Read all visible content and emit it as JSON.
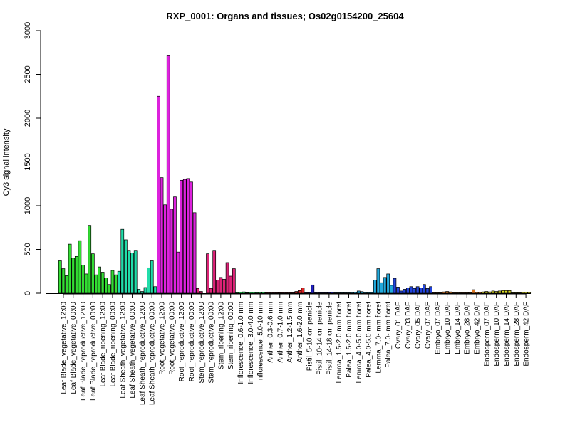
{
  "chart_data": {
    "type": "bar",
    "title": "RXP_0001: Organs and tissues; Os02g0154200_25604",
    "xlabel": "",
    "ylabel": "Cy3 signal intensity",
    "ylim": [
      0,
      3000
    ],
    "yticks": [
      0,
      500,
      1000,
      1500,
      2000,
      2500,
      3000
    ],
    "grid": false,
    "categories": [
      "Leaf Blade_vegetative_12:00",
      "Leaf Blade_vegetative_00:00",
      "Leaf Blade_reproductive_12:00",
      "Leaf Blade_reproductive_00:00",
      "Leaf Blade_ripening_12:00",
      "Leaf Blade_ripening_00:00",
      "Leaf Sheath_vegetative_12:00",
      "Leaf Sheath_vegetative_00:00",
      "Leaf Sheath_reproductive_12:00",
      "Leaf Sheath_reproductive_00:00",
      "Root_vegetative_12:00",
      "Root_vegetative_00:00",
      "Root_reproductive_12:00",
      "Root_reproductive_00:00",
      "Stem_reproductive_12:00",
      "Stem_reproductive_00:00",
      "Stem_ripening_12:00",
      "Stem_ripening_00:00",
      "Inflorescence_0.6-1.0 mm",
      "Inflorescence_3.0-4.0 mm",
      "Inflorescence_5.0-10 mm",
      "Anther_0.3-0.6 mm",
      "Anther_0.7-1.0 mm",
      "Anther_1.2-1.5 mm",
      "Anther_1.6-2.0 mm",
      "Pistil_5-10 cm panicle",
      "Pistil_10-14 cm panicle",
      "Pistil_14-18 cm panicle",
      "Lemma_1.5-2.0 mm floret",
      "Palea_1.5-2.0 mm floret",
      "Lemma_4.0-5.0 mm floret",
      "Palea_4.0-5.0 mm floret",
      "Lemma_7.0- mm floret",
      "Palea_7.0- mm floret",
      "Ovary_01 DAF",
      "Ovary_03 DAF",
      "Ovary_05 DAF",
      "Ovary_07 DAF",
      "Embryo_07 DAF",
      "Embryo_10 DAF",
      "Embryo_14 DAF",
      "Embryo_28 DAF",
      "Embryo_42 DAF",
      "Endosperm_07 DAF",
      "Endosperm_10 DAF",
      "Endosperm_14 DAF",
      "Endosperm_28 DAF",
      "Endosperm_42 DAF"
    ],
    "groups": [
      {
        "color": "#33dd33",
        "values": [
          370,
          280,
          200
        ]
      },
      {
        "color": "#33dd33",
        "values": [
          560,
          400,
          420
        ]
      },
      {
        "color": "#33dd33",
        "values": [
          600,
          320,
          220
        ]
      },
      {
        "color": "#33dd33",
        "values": [
          775,
          450,
          210
        ]
      },
      {
        "color": "#33dd33",
        "values": [
          300,
          240,
          175
        ]
      },
      {
        "color": "#33dd33",
        "values": [
          100,
          260,
          210
        ]
      },
      {
        "color": "#22ddaa",
        "values": [
          250,
          730,
          610
        ]
      },
      {
        "color": "#22ddaa",
        "values": [
          490,
          460,
          490
        ]
      },
      {
        "color": "#22ddaa",
        "values": [
          45,
          20,
          65
        ]
      },
      {
        "color": "#22ddaa",
        "values": [
          290,
          370,
          75
        ]
      },
      {
        "color": "#dd22dd",
        "values": [
          2250,
          1320,
          1010
        ]
      },
      {
        "color": "#dd22dd",
        "values": [
          2720,
          960,
          1100
        ]
      },
      {
        "color": "#dd22dd",
        "values": [
          470,
          1290,
          1300
        ]
      },
      {
        "color": "#dd22dd",
        "values": [
          1310,
          1270,
          920
        ]
      },
      {
        "color": "#dd2277",
        "values": [
          55,
          20
        ]
      },
      {
        "color": "#dd2277",
        "values": [
          450,
          55,
          490
        ]
      },
      {
        "color": "#dd2277",
        "values": [
          150,
          180,
          160
        ]
      },
      {
        "color": "#dd2277",
        "values": [
          350,
          195,
          280
        ]
      },
      {
        "color": "#22dd55",
        "values": [
          8,
          12,
          15
        ]
      },
      {
        "color": "#22dd55",
        "values": [
          6,
          10,
          12
        ]
      },
      {
        "color": "#22dd55",
        "values": [
          8,
          10,
          12
        ]
      },
      {
        "color": "#dd2222",
        "values": [
          5,
          5,
          5
        ]
      },
      {
        "color": "#dd2222",
        "values": [
          5,
          6,
          5
        ]
      },
      {
        "color": "#dd2222",
        "values": [
          5,
          5,
          5
        ]
      },
      {
        "color": "#dd2222",
        "values": [
          20,
          30,
          60
        ]
      },
      {
        "color": "#2222cc",
        "values": [
          5,
          8,
          95
        ]
      },
      {
        "color": "#2222cc",
        "values": [
          5,
          5,
          5
        ]
      },
      {
        "color": "#2222cc",
        "values": [
          5,
          8,
          10
        ]
      },
      {
        "color": "#22aadd",
        "values": [
          5,
          5,
          5
        ]
      },
      {
        "color": "#22aadd",
        "values": [
          5,
          5,
          8
        ]
      },
      {
        "color": "#22aadd",
        "values": [
          10,
          25,
          18
        ]
      },
      {
        "color": "#22aadd",
        "values": [
          8,
          8,
          8
        ]
      },
      {
        "color": "#22aadd",
        "values": [
          150,
          280,
          120
        ]
      },
      {
        "color": "#22aadd",
        "values": [
          180,
          220,
          90
        ]
      },
      {
        "color": "#2244dd",
        "values": [
          170,
          70,
          25
        ]
      },
      {
        "color": "#2244dd",
        "values": [
          45,
          60,
          75
        ]
      },
      {
        "color": "#2244dd",
        "values": [
          55,
          75,
          60
        ]
      },
      {
        "color": "#2244dd",
        "values": [
          100,
          55,
          75
        ]
      },
      {
        "color": "#dd7722",
        "values": [
          5,
          5,
          5
        ]
      },
      {
        "color": "#dd7722",
        "values": [
          15,
          20,
          15
        ]
      },
      {
        "color": "#dd7722",
        "values": [
          5,
          5,
          5
        ]
      },
      {
        "color": "#dd7722",
        "values": [
          5,
          5,
          5
        ]
      },
      {
        "color": "#dd7722",
        "values": [
          40,
          10,
          10
        ]
      },
      {
        "color": "#dddd22",
        "values": [
          15,
          20,
          15
        ]
      },
      {
        "color": "#dddd22",
        "values": [
          25,
          20,
          25
        ]
      },
      {
        "color": "#dddd22",
        "values": [
          30,
          30,
          30
        ]
      },
      {
        "color": "#dddd22",
        "values": [
          5,
          5,
          5
        ]
      },
      {
        "color": "#dddd22",
        "values": [
          10,
          12,
          10
        ]
      }
    ]
  }
}
